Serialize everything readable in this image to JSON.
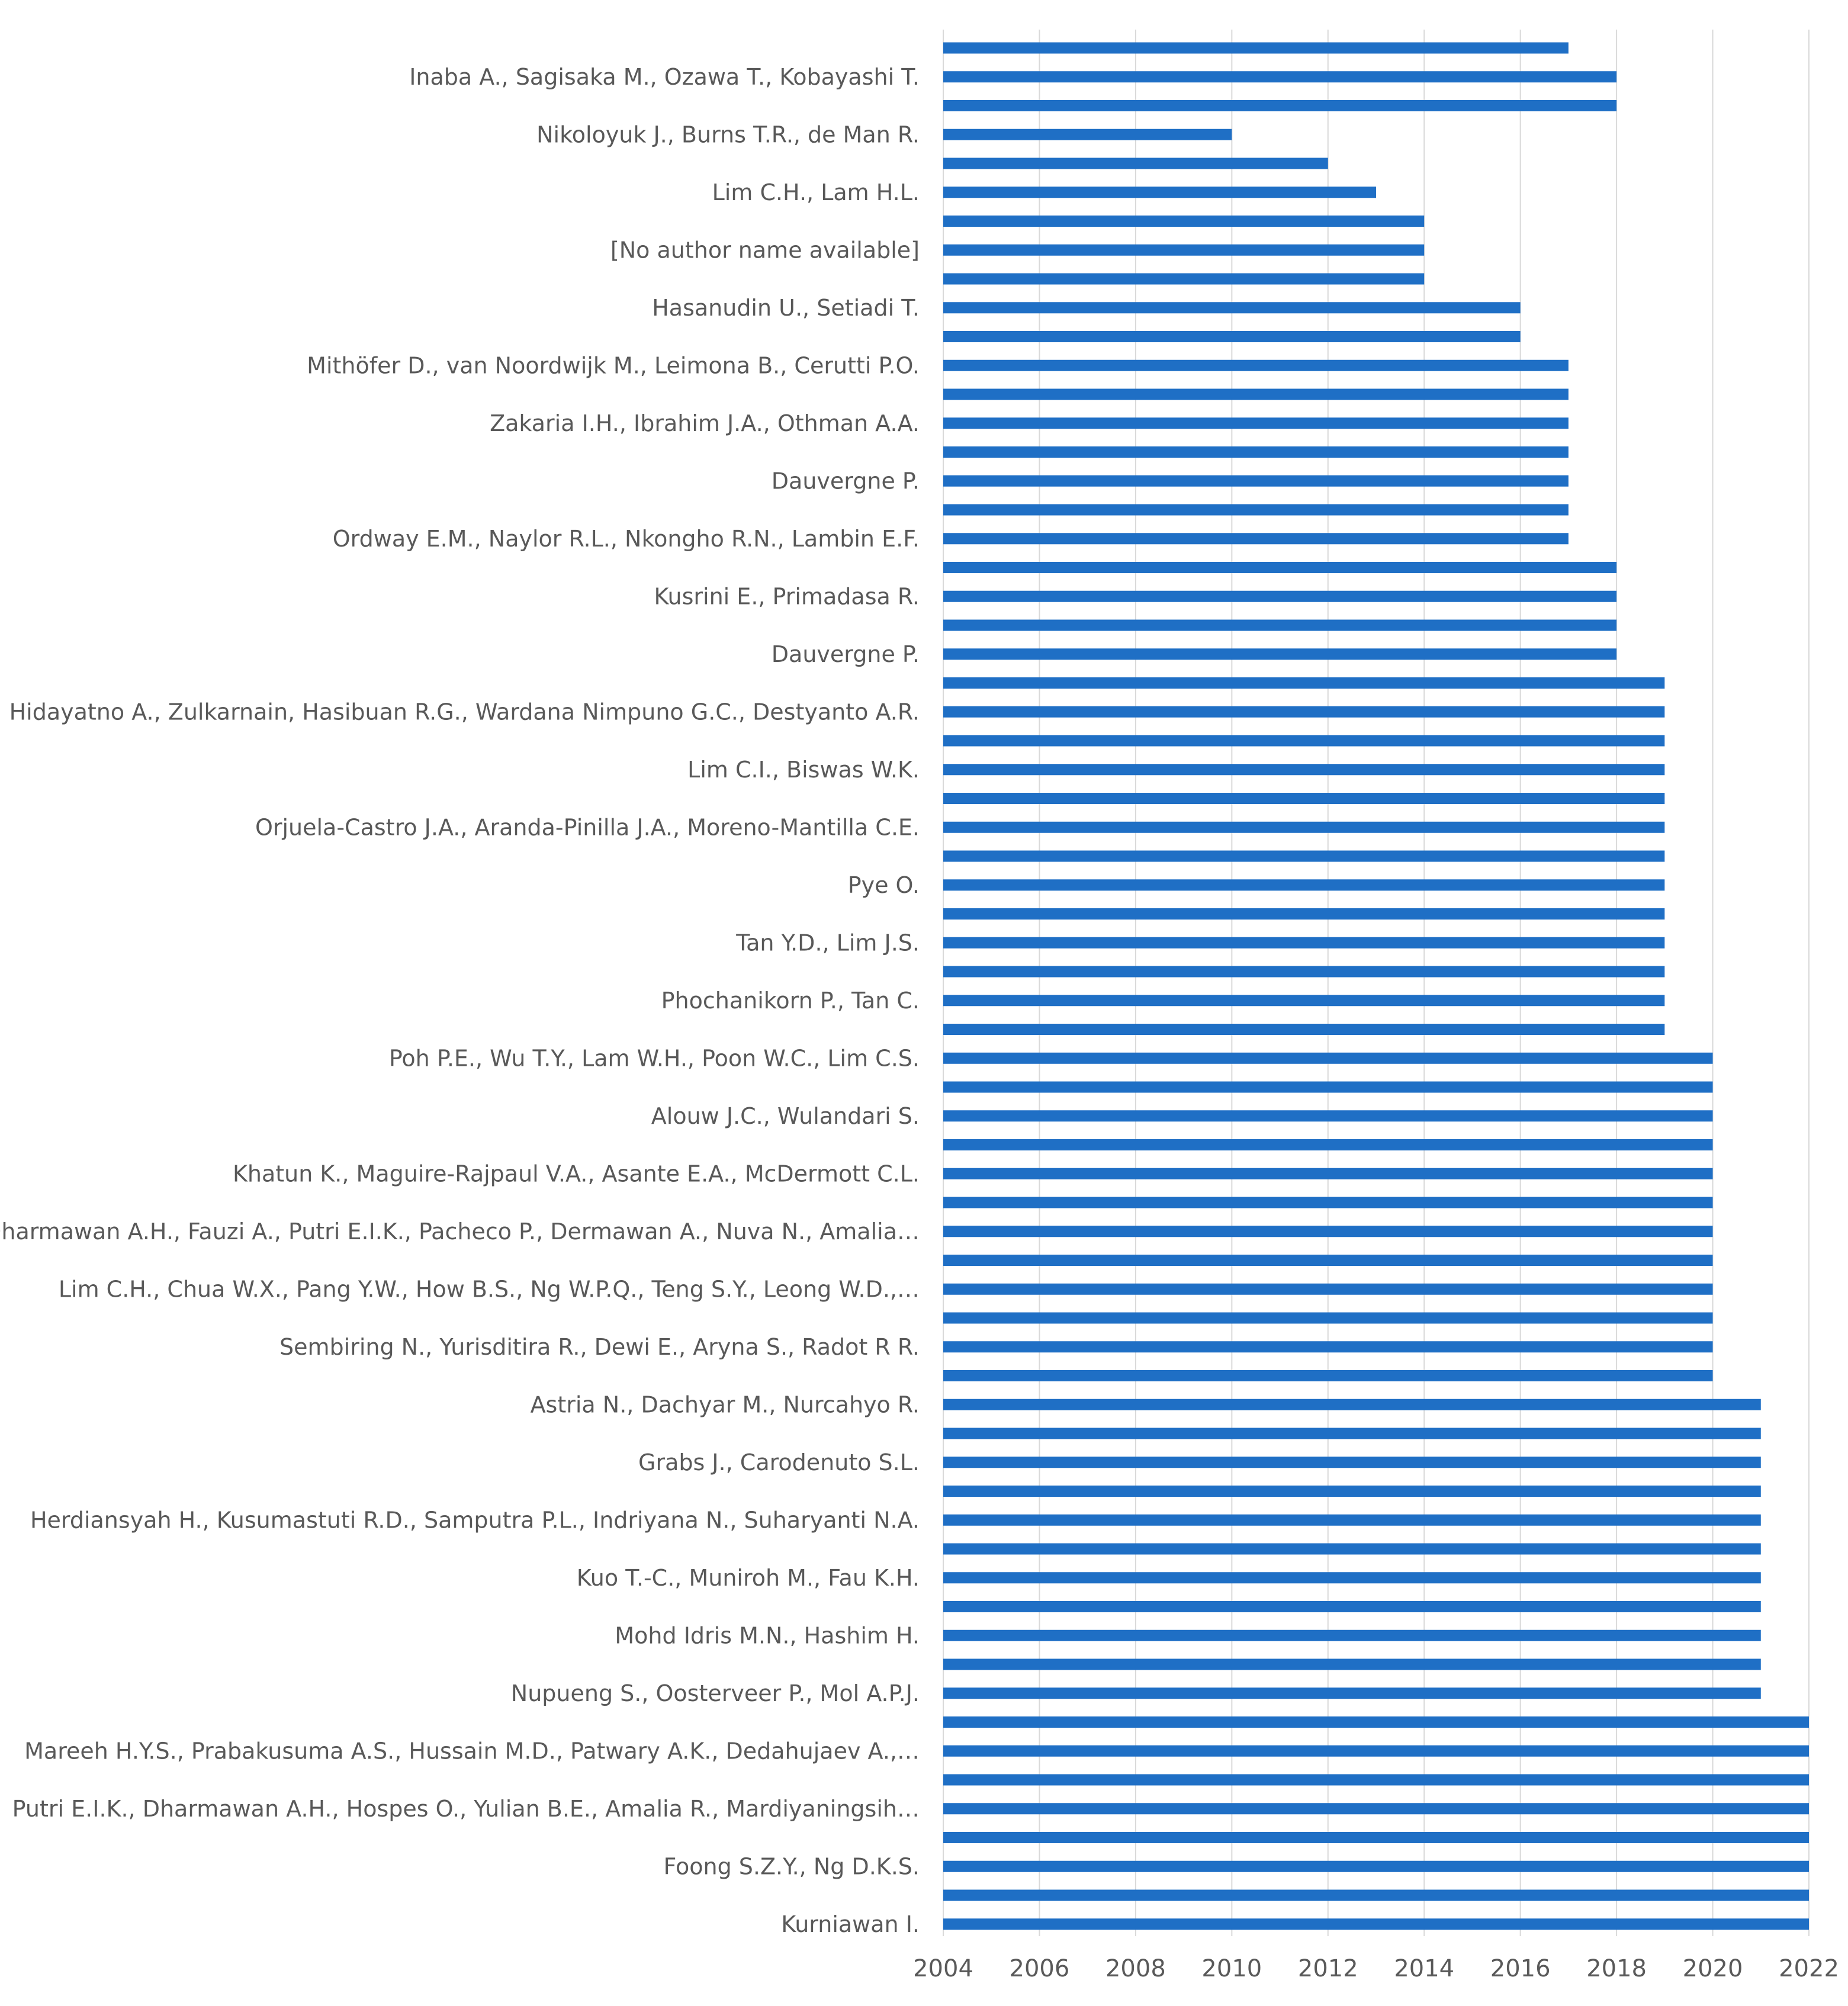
{
  "chart_data": {
    "type": "bar",
    "orientation": "horizontal",
    "title": "",
    "xlabel": "",
    "ylabel": "",
    "xlim": [
      2004,
      2022
    ],
    "x_ticks": [
      "2004",
      "2006",
      "2008",
      "2010",
      "2012",
      "2014",
      "2016",
      "2018",
      "2020",
      "2022"
    ],
    "grid": true,
    "legend": "none",
    "bar_color": "#1f6fc5",
    "categories": [
      "",
      "Inaba A., Sagisaka M., Ozawa T., Kobayashi T.",
      "",
      "Nikoloyuk J., Burns T.R., de Man R.",
      "",
      "Lim C.H., Lam H.L.",
      "",
      "[No author name available]",
      "",
      "Hasanudin U., Setiadi T.",
      "",
      "Mithöfer D., van Noordwijk M., Leimona B., Cerutti P.O.",
      "",
      "Zakaria I.H., Ibrahim J.A., Othman A.A.",
      "",
      "Dauvergne P.",
      "",
      "Ordway E.M., Naylor R.L., Nkongho R.N., Lambin E.F.",
      "",
      "Kusrini E., Primadasa R.",
      "",
      "Dauvergne P.",
      "",
      "Hidayatno A., Zulkarnain, Hasibuan R.G., Wardana Nimpuno G.C., Destyanto A.R.",
      "",
      "Lim C.I., Biswas W.K.",
      "",
      "Orjuela-Castro J.A., Aranda-Pinilla J.A., Moreno-Mantilla C.E.",
      "",
      "Pye O.",
      "",
      "Tan Y.D., Lim J.S.",
      "",
      "Phochanikorn P., Tan C.",
      "",
      "Poh P.E., Wu T.Y., Lam W.H., Poon W.C., Lim C.S.",
      "",
      "Alouw J.C., Wulandari S.",
      "",
      "Khatun K., Maguire-Rajpaul V.A., Asante E.A., McDermott C.L.",
      "",
      "Dharmawan A.H., Fauzi A., Putri E.I.K., Pacheco P., Dermawan A., Nuva N., Amalia…",
      "",
      "Lim C.H., Chua W.X., Pang Y.W., How B.S., Ng W.P.Q., Teng S.Y., Leong W.D.,…",
      "",
      "Sembiring N., Yurisditira R., Dewi E., Aryna S., Radot R R.",
      "",
      "Astria N., Dachyar M., Nurcahyo R.",
      "",
      "Grabs J., Carodenuto S.L.",
      "",
      "Herdiansyah H., Kusumastuti R.D., Samputra P.L., Indriyana N., Suharyanti N.A.",
      "",
      "Kuo T.-C., Muniroh M., Fau K.H.",
      "",
      "Mohd Idris M.N., Hashim H.",
      "",
      "Nupueng S., Oosterveer P., Mol A.P.J.",
      "",
      "Mareeh H.Y.S., Prabakusuma A.S., Hussain M.D., Patwary A.K., Dedahujaev A.,…",
      "",
      "Putri E.I.K., Dharmawan A.H., Hospes O., Yulian B.E., Amalia R., Mardiyaningsih…",
      "",
      "Foong S.Z.Y., Ng D.K.S.",
      "",
      "Kurniawan I."
    ],
    "values": [
      2017,
      2018,
      2018,
      2010,
      2012,
      2013,
      2014,
      2014,
      2014,
      2016,
      2016,
      2017,
      2017,
      2017,
      2017,
      2017,
      2017,
      2017,
      2018,
      2018,
      2018,
      2018,
      2019,
      2019,
      2019,
      2019,
      2019,
      2019,
      2019,
      2019,
      2019,
      2019,
      2019,
      2019,
      2019,
      2020,
      2020,
      2020,
      2020,
      2020,
      2020,
      2020,
      2020,
      2020,
      2020,
      2020,
      2020,
      2021,
      2021,
      2021,
      2021,
      2021,
      2021,
      2021,
      2021,
      2021,
      2021,
      2021,
      2022,
      2022,
      2022,
      2022,
      2022,
      2022,
      2022,
      2022
    ]
  }
}
